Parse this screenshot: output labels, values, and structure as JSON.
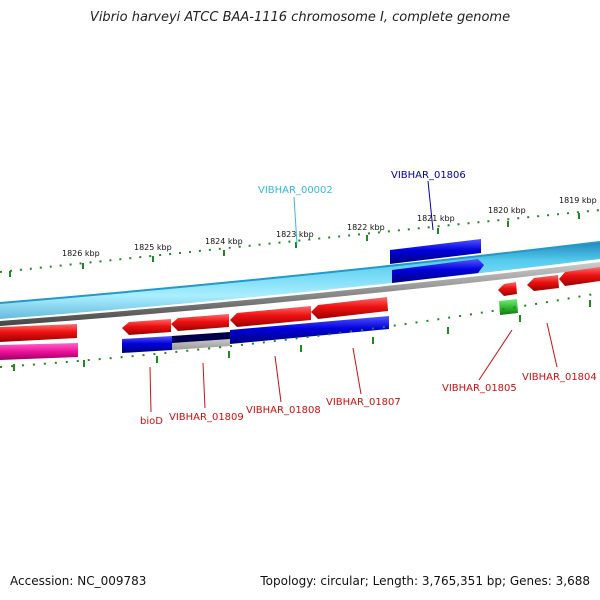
{
  "title": "Vibrio harveyi ATCC BAA-1116 chromosome I, complete genome",
  "footer": {
    "accession": "Accession: NC_009783",
    "summary": "Topology: circular; Length: 3,765,351 bp; Genes: 3,688"
  },
  "colors": {
    "forward_cds": "#0000dd",
    "reverse_cds": "#ee1111",
    "pseudogene": "#ee1199",
    "rna": "#33bb33",
    "backbone_blue": "#2299cc",
    "backbone_gray": "#808080",
    "tick": "#228822"
  },
  "scale": {
    "labels": [
      "1826 kbp",
      "1825 kbp",
      "1824 kbp",
      "1823 kbp",
      "1822 kbp",
      "1821 kbp",
      "1820 kbp",
      "1819 kbp"
    ]
  },
  "gene_labels": [
    {
      "text": "VIBHAR_00002",
      "color": "#33bbdd"
    },
    {
      "text": "VIBHAR_01806",
      "color": "#0000aa"
    },
    {
      "text": "bioD",
      "color": "#cc1111"
    },
    {
      "text": "VIBHAR_01809",
      "color": "#cc1111"
    },
    {
      "text": "VIBHAR_01808",
      "color": "#cc1111"
    },
    {
      "text": "VIBHAR_01807",
      "color": "#cc1111"
    },
    {
      "text": "VIBHAR_01805",
      "color": "#cc1111"
    },
    {
      "text": "VIBHAR_01804",
      "color": "#cc1111"
    }
  ]
}
